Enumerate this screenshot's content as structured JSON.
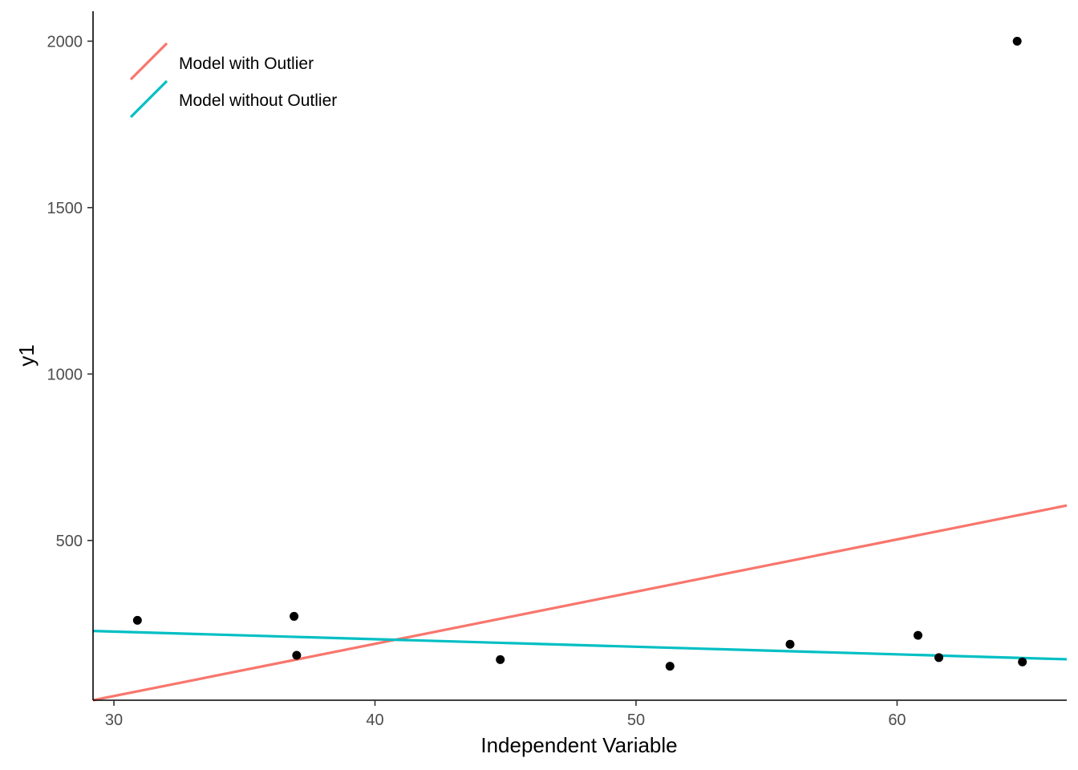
{
  "chart_data": {
    "type": "scatter",
    "xlabel": "Independent Variable",
    "ylabel": "y1",
    "xlim": [
      29.2,
      66.5
    ],
    "ylim": [
      20,
      2090
    ],
    "x_ticks": [
      30,
      40,
      50,
      60
    ],
    "y_ticks": [
      500,
      1000,
      1500,
      2000
    ],
    "grid": false,
    "legend_position": "top-left",
    "points": [
      {
        "x": 30.9,
        "y": 260
      },
      {
        "x": 36.9,
        "y": 272
      },
      {
        "x": 37.0,
        "y": 155
      },
      {
        "x": 44.8,
        "y": 142
      },
      {
        "x": 51.3,
        "y": 122
      },
      {
        "x": 55.9,
        "y": 188
      },
      {
        "x": 60.8,
        "y": 215
      },
      {
        "x": 61.6,
        "y": 148
      },
      {
        "x": 64.6,
        "y": 2000
      },
      {
        "x": 64.8,
        "y": 135
      }
    ],
    "series": [
      {
        "name": "Model with Outlier",
        "color": "#F8766D",
        "line": [
          {
            "x": 29.2,
            "y": 20
          },
          {
            "x": 66.5,
            "y": 605
          }
        ]
      },
      {
        "name": "Model without Outlier",
        "color": "#00BFC4",
        "line": [
          {
            "x": 29.2,
            "y": 228
          },
          {
            "x": 66.5,
            "y": 143
          }
        ]
      }
    ],
    "point_color": "#000000"
  }
}
